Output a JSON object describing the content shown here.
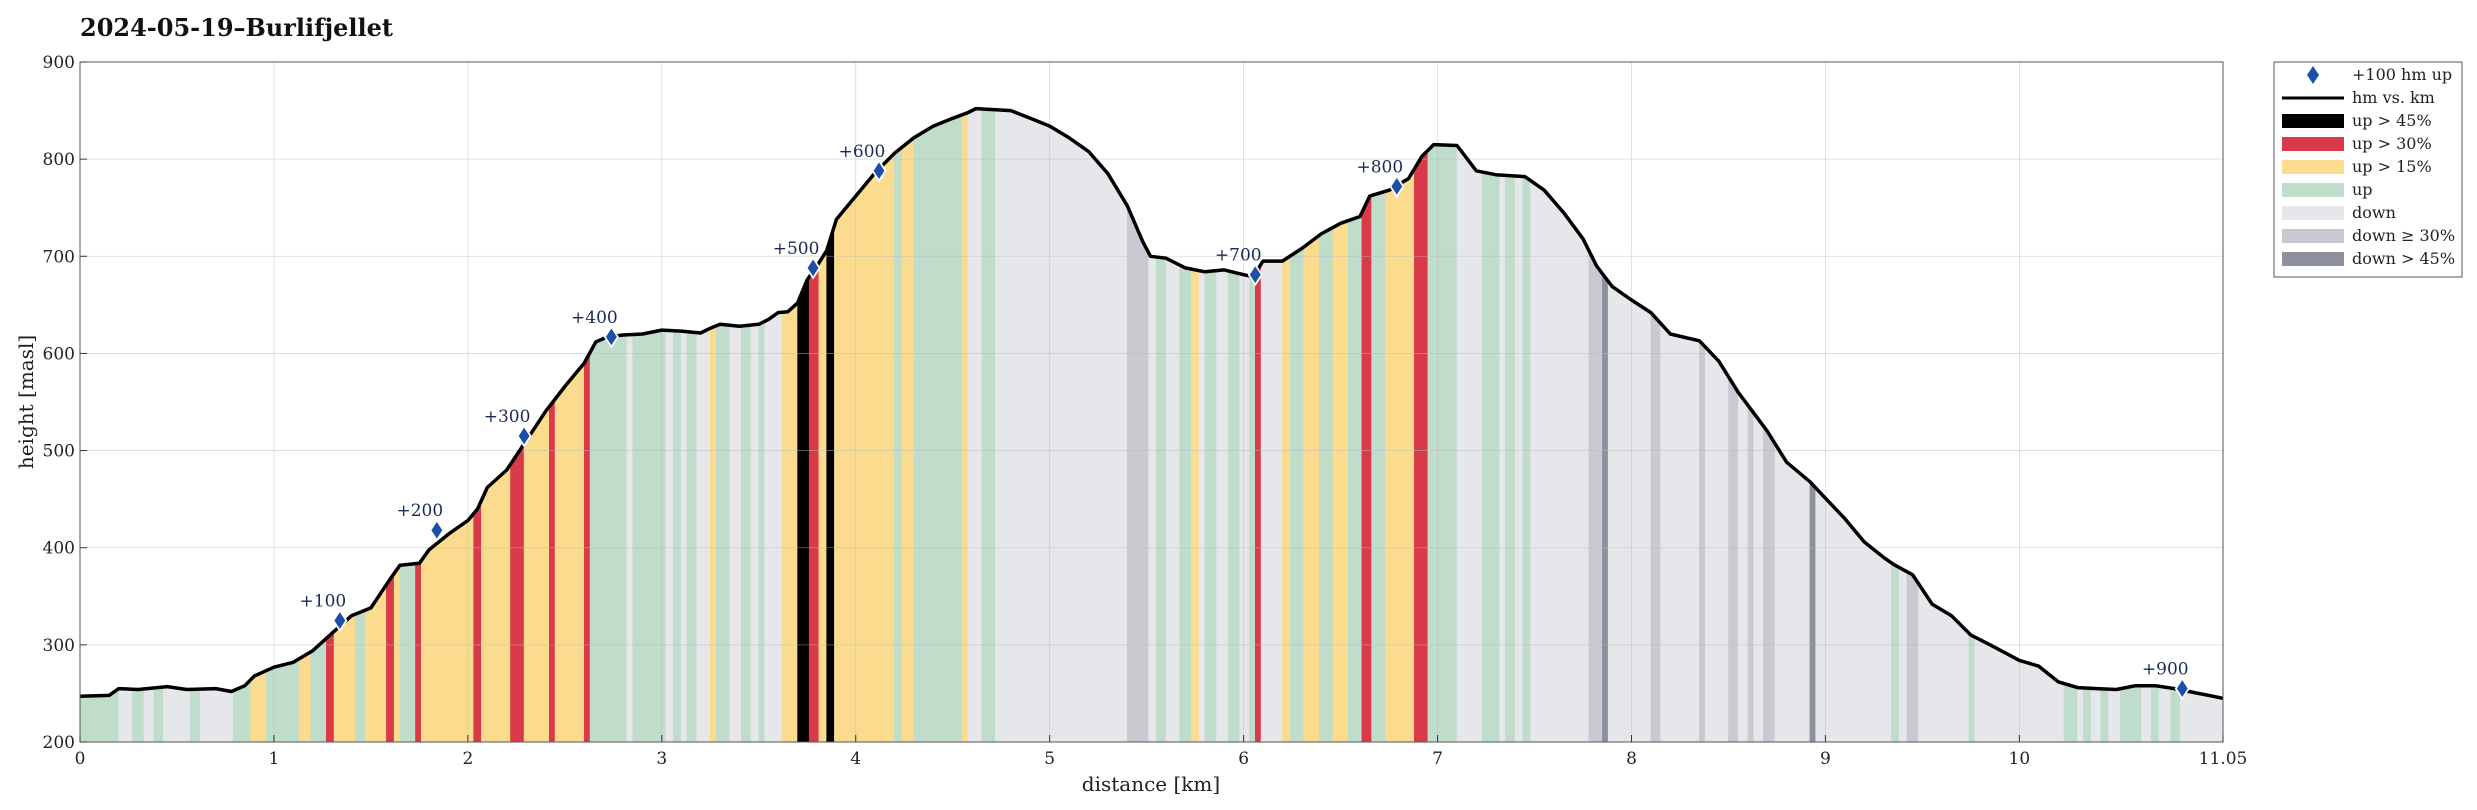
{
  "chart_data": {
    "type": "area",
    "title": "2024-05-19–Burlifjellet",
    "xlabel": "distance [km]",
    "ylabel": "height [masl]",
    "xlim": [
      0,
      11.05
    ],
    "ylim": [
      200,
      900
    ],
    "xticks": [
      "0",
      "1",
      "2",
      "3",
      "4",
      "5",
      "6",
      "7",
      "8",
      "9",
      "10",
      "11.05"
    ],
    "xtick_values": [
      0,
      1,
      2,
      3,
      4,
      5,
      6,
      7,
      8,
      9,
      10,
      11.05
    ],
    "yticks": [
      "200",
      "300",
      "400",
      "500",
      "600",
      "700",
      "800",
      "900"
    ],
    "ytick_values": [
      200,
      300,
      400,
      500,
      600,
      700,
      800,
      900
    ],
    "grid": true,
    "legend_position": "outside top-right",
    "legend": [
      {
        "key": "marker",
        "label": "+100 hm up",
        "color": "#1b4fa8"
      },
      {
        "key": "line",
        "label": "hm vs. km",
        "color": "#000000"
      },
      {
        "key": "up45",
        "label": "up > 45%",
        "color": "#000000"
      },
      {
        "key": "up30",
        "label": "up > 30%",
        "color": "#d93a4a"
      },
      {
        "key": "up15",
        "label": "up > 15%",
        "color": "#fbdc8f"
      },
      {
        "key": "up",
        "label": "up",
        "color": "#c0dccb"
      },
      {
        "key": "down",
        "label": "down",
        "color": "#e6e7ea"
      },
      {
        "key": "down30",
        "label": "down ≥ 30%",
        "color": "#c9cad1"
      },
      {
        "key": "down45",
        "label": "down > 45%",
        "color": "#8e919c"
      }
    ],
    "profile": [
      [
        0,
        247
      ],
      [
        0.15,
        248
      ],
      [
        0.2,
        255
      ],
      [
        0.3,
        254
      ],
      [
        0.45,
        257
      ],
      [
        0.55,
        254
      ],
      [
        0.7,
        255
      ],
      [
        0.78,
        252
      ],
      [
        0.85,
        258
      ],
      [
        0.9,
        268
      ],
      [
        1.0,
        277
      ],
      [
        1.1,
        282
      ],
      [
        1.2,
        294
      ],
      [
        1.3,
        312
      ],
      [
        1.4,
        330
      ],
      [
        1.5,
        338
      ],
      [
        1.6,
        368
      ],
      [
        1.65,
        382
      ],
      [
        1.75,
        384
      ],
      [
        1.8,
        398
      ],
      [
        1.9,
        414
      ],
      [
        2.0,
        428
      ],
      [
        2.05,
        440
      ],
      [
        2.1,
        462
      ],
      [
        2.2,
        480
      ],
      [
        2.3,
        510
      ],
      [
        2.4,
        540
      ],
      [
        2.5,
        566
      ],
      [
        2.6,
        590
      ],
      [
        2.66,
        612
      ],
      [
        2.72,
        617
      ],
      [
        2.8,
        619
      ],
      [
        2.9,
        620
      ],
      [
        3.0,
        624
      ],
      [
        3.1,
        623
      ],
      [
        3.2,
        621
      ],
      [
        3.25,
        626
      ],
      [
        3.3,
        630
      ],
      [
        3.4,
        628
      ],
      [
        3.5,
        630
      ],
      [
        3.55,
        635
      ],
      [
        3.6,
        642
      ],
      [
        3.65,
        643
      ],
      [
        3.7,
        652
      ],
      [
        3.75,
        676
      ],
      [
        3.8,
        690
      ],
      [
        3.85,
        706
      ],
      [
        3.9,
        738
      ],
      [
        4.0,
        762
      ],
      [
        4.1,
        786
      ],
      [
        4.2,
        806
      ],
      [
        4.3,
        822
      ],
      [
        4.4,
        834
      ],
      [
        4.5,
        842
      ],
      [
        4.58,
        848
      ],
      [
        4.62,
        852
      ],
      [
        4.8,
        850
      ],
      [
        4.9,
        842
      ],
      [
        5.0,
        834
      ],
      [
        5.1,
        822
      ],
      [
        5.2,
        808
      ],
      [
        5.3,
        785
      ],
      [
        5.4,
        752
      ],
      [
        5.48,
        715
      ],
      [
        5.52,
        700
      ],
      [
        5.6,
        698
      ],
      [
        5.7,
        688
      ],
      [
        5.8,
        684
      ],
      [
        5.9,
        686
      ],
      [
        6.0,
        681
      ],
      [
        6.05,
        679
      ],
      [
        6.1,
        695
      ],
      [
        6.2,
        695
      ],
      [
        6.3,
        708
      ],
      [
        6.4,
        723
      ],
      [
        6.5,
        734
      ],
      [
        6.6,
        741
      ],
      [
        6.65,
        762
      ],
      [
        6.75,
        768
      ],
      [
        6.85,
        780
      ],
      [
        6.92,
        803
      ],
      [
        6.98,
        815
      ],
      [
        7.1,
        814
      ],
      [
        7.2,
        788
      ],
      [
        7.3,
        784
      ],
      [
        7.45,
        782
      ],
      [
        7.55,
        768
      ],
      [
        7.65,
        745
      ],
      [
        7.75,
        718
      ],
      [
        7.82,
        690
      ],
      [
        7.9,
        669
      ],
      [
        8.0,
        655
      ],
      [
        8.1,
        642
      ],
      [
        8.2,
        620
      ],
      [
        8.35,
        613
      ],
      [
        8.45,
        592
      ],
      [
        8.55,
        560
      ],
      [
        8.7,
        520
      ],
      [
        8.8,
        488
      ],
      [
        8.92,
        468
      ],
      [
        9.0,
        451
      ],
      [
        9.1,
        430
      ],
      [
        9.2,
        406
      ],
      [
        9.3,
        390
      ],
      [
        9.35,
        383
      ],
      [
        9.45,
        372
      ],
      [
        9.55,
        342
      ],
      [
        9.65,
        330
      ],
      [
        9.75,
        310
      ],
      [
        9.85,
        300
      ],
      [
        10.0,
        284
      ],
      [
        10.1,
        278
      ],
      [
        10.2,
        262
      ],
      [
        10.3,
        256
      ],
      [
        10.4,
        255
      ],
      [
        10.5,
        254
      ],
      [
        10.6,
        258
      ],
      [
        10.7,
        258
      ],
      [
        10.8,
        255
      ],
      [
        10.9,
        251
      ],
      [
        11.0,
        247
      ],
      [
        11.05,
        245
      ]
    ],
    "segments": [
      [
        0.0,
        0.2,
        "up"
      ],
      [
        0.2,
        0.27,
        "down"
      ],
      [
        0.27,
        0.33,
        "up"
      ],
      [
        0.33,
        0.38,
        "down"
      ],
      [
        0.38,
        0.43,
        "up"
      ],
      [
        0.43,
        0.57,
        "down"
      ],
      [
        0.57,
        0.62,
        "up"
      ],
      [
        0.62,
        0.79,
        "down"
      ],
      [
        0.79,
        0.88,
        "up"
      ],
      [
        0.88,
        0.96,
        "up15"
      ],
      [
        0.96,
        1.13,
        "up"
      ],
      [
        1.13,
        1.19,
        "up15"
      ],
      [
        1.19,
        1.27,
        "up"
      ],
      [
        1.27,
        1.31,
        "up30"
      ],
      [
        1.31,
        1.42,
        "up15"
      ],
      [
        1.42,
        1.47,
        "up"
      ],
      [
        1.47,
        1.58,
        "up15"
      ],
      [
        1.58,
        1.62,
        "up30"
      ],
      [
        1.62,
        1.65,
        "up15"
      ],
      [
        1.65,
        1.73,
        "up"
      ],
      [
        1.73,
        1.76,
        "up30"
      ],
      [
        1.76,
        2.03,
        "up15"
      ],
      [
        2.03,
        2.07,
        "up30"
      ],
      [
        2.07,
        2.22,
        "up15"
      ],
      [
        2.22,
        2.29,
        "up30"
      ],
      [
        2.29,
        2.42,
        "up15"
      ],
      [
        2.42,
        2.45,
        "up30"
      ],
      [
        2.45,
        2.6,
        "up15"
      ],
      [
        2.6,
        2.63,
        "up30"
      ],
      [
        2.63,
        2.82,
        "up"
      ],
      [
        2.82,
        2.85,
        "down"
      ],
      [
        2.85,
        3.02,
        "up"
      ],
      [
        3.02,
        3.06,
        "down"
      ],
      [
        3.06,
        3.1,
        "up"
      ],
      [
        3.1,
        3.13,
        "down"
      ],
      [
        3.13,
        3.18,
        "up"
      ],
      [
        3.18,
        3.25,
        "down"
      ],
      [
        3.25,
        3.28,
        "up15"
      ],
      [
        3.28,
        3.35,
        "up"
      ],
      [
        3.35,
        3.41,
        "down"
      ],
      [
        3.41,
        3.46,
        "up"
      ],
      [
        3.46,
        3.5,
        "down"
      ],
      [
        3.5,
        3.53,
        "up"
      ],
      [
        3.53,
        3.62,
        "down"
      ],
      [
        3.62,
        3.7,
        "up15"
      ],
      [
        3.7,
        3.76,
        "up45"
      ],
      [
        3.76,
        3.81,
        "up30"
      ],
      [
        3.81,
        3.85,
        "up15"
      ],
      [
        3.85,
        3.89,
        "up45"
      ],
      [
        3.89,
        4.2,
        "up15"
      ],
      [
        4.2,
        4.24,
        "up"
      ],
      [
        4.24,
        4.3,
        "up15"
      ],
      [
        4.3,
        4.55,
        "up"
      ],
      [
        4.55,
        4.58,
        "up15"
      ],
      [
        4.58,
        4.65,
        "down"
      ],
      [
        4.65,
        4.72,
        "up"
      ],
      [
        4.72,
        5.4,
        "down"
      ],
      [
        5.4,
        5.51,
        "down30"
      ],
      [
        5.51,
        5.55,
        "down"
      ],
      [
        5.55,
        5.6,
        "up"
      ],
      [
        5.6,
        5.67,
        "down"
      ],
      [
        5.67,
        5.73,
        "up"
      ],
      [
        5.73,
        5.77,
        "up15"
      ],
      [
        5.77,
        5.8,
        "down"
      ],
      [
        5.8,
        5.86,
        "up"
      ],
      [
        5.86,
        5.92,
        "down"
      ],
      [
        5.92,
        5.98,
        "up"
      ],
      [
        5.98,
        6.03,
        "down"
      ],
      [
        6.03,
        6.06,
        "up"
      ],
      [
        6.06,
        6.09,
        "up30"
      ],
      [
        6.09,
        6.2,
        "down"
      ],
      [
        6.2,
        6.24,
        "up15"
      ],
      [
        6.24,
        6.31,
        "up"
      ],
      [
        6.31,
        6.39,
        "up15"
      ],
      [
        6.39,
        6.46,
        "up"
      ],
      [
        6.46,
        6.54,
        "up15"
      ],
      [
        6.54,
        6.61,
        "up"
      ],
      [
        6.61,
        6.66,
        "up30"
      ],
      [
        6.66,
        6.73,
        "up"
      ],
      [
        6.73,
        6.88,
        "up15"
      ],
      [
        6.88,
        6.95,
        "up30"
      ],
      [
        6.95,
        7.1,
        "up"
      ],
      [
        7.1,
        7.23,
        "down"
      ],
      [
        7.23,
        7.32,
        "up"
      ],
      [
        7.32,
        7.35,
        "down"
      ],
      [
        7.35,
        7.4,
        "up"
      ],
      [
        7.4,
        7.44,
        "down"
      ],
      [
        7.44,
        7.48,
        "up"
      ],
      [
        7.48,
        7.78,
        "down"
      ],
      [
        7.78,
        7.85,
        "down30"
      ],
      [
        7.85,
        7.88,
        "down45"
      ],
      [
        7.88,
        8.1,
        "down"
      ],
      [
        8.1,
        8.15,
        "down30"
      ],
      [
        8.15,
        8.35,
        "down"
      ],
      [
        8.35,
        8.38,
        "down30"
      ],
      [
        8.38,
        8.5,
        "down"
      ],
      [
        8.5,
        8.55,
        "down30"
      ],
      [
        8.55,
        8.6,
        "down"
      ],
      [
        8.6,
        8.63,
        "down30"
      ],
      [
        8.63,
        8.68,
        "down"
      ],
      [
        8.68,
        8.74,
        "down30"
      ],
      [
        8.74,
        8.92,
        "down"
      ],
      [
        8.92,
        8.95,
        "down45"
      ],
      [
        8.95,
        9.34,
        "down"
      ],
      [
        9.34,
        9.38,
        "up"
      ],
      [
        9.38,
        9.42,
        "down"
      ],
      [
        9.42,
        9.48,
        "down30"
      ],
      [
        9.48,
        9.74,
        "down"
      ],
      [
        9.74,
        9.77,
        "up"
      ],
      [
        9.77,
        10.23,
        "down"
      ],
      [
        10.23,
        10.3,
        "up"
      ],
      [
        10.3,
        10.33,
        "down"
      ],
      [
        10.33,
        10.37,
        "up"
      ],
      [
        10.37,
        10.42,
        "down"
      ],
      [
        10.42,
        10.46,
        "up"
      ],
      [
        10.46,
        10.52,
        "down"
      ],
      [
        10.52,
        10.63,
        "up"
      ],
      [
        10.63,
        10.68,
        "down"
      ],
      [
        10.68,
        10.72,
        "up"
      ],
      [
        10.72,
        10.78,
        "down"
      ],
      [
        10.78,
        10.83,
        "up"
      ],
      [
        10.83,
        11.05,
        "down"
      ]
    ],
    "markers": [
      {
        "label": "+100",
        "x": 1.34,
        "y": 325
      },
      {
        "label": "+200",
        "x": 1.84,
        "y": 418
      },
      {
        "label": "+300",
        "x": 2.29,
        "y": 515
      },
      {
        "label": "+400",
        "x": 2.74,
        "y": 617
      },
      {
        "label": "+500",
        "x": 3.78,
        "y": 688
      },
      {
        "label": "+600",
        "x": 4.12,
        "y": 788
      },
      {
        "label": "+700",
        "x": 6.06,
        "y": 681
      },
      {
        "label": "+800",
        "x": 6.79,
        "y": 772
      },
      {
        "label": "+900",
        "x": 10.84,
        "y": 255
      }
    ]
  }
}
